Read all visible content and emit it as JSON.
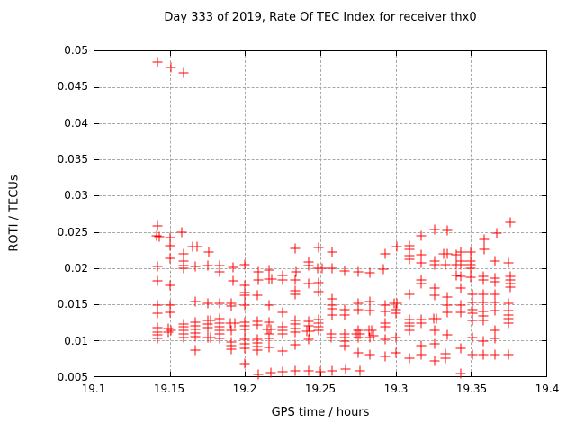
{
  "chart_data": {
    "type": "scatter",
    "title": "Day 333 of 2019, Rate Of TEC Index for receiver thx0",
    "xlabel": "GPS time / hours",
    "ylabel": "ROTI / TECUs",
    "xlim": [
      19.1,
      19.4
    ],
    "ylim": [
      0.005,
      0.05
    ],
    "grid": true,
    "legend": "none",
    "marker": {
      "shape": "plus",
      "color": "#ff0000"
    },
    "xticks": [
      {
        "v": 19.1,
        "label": "19.1"
      },
      {
        "v": 19.15,
        "label": "19.15"
      },
      {
        "v": 19.2,
        "label": "19.2"
      },
      {
        "v": 19.25,
        "label": "19.25"
      },
      {
        "v": 19.3,
        "label": "19.3"
      },
      {
        "v": 19.35,
        "label": "19.35"
      },
      {
        "v": 19.4,
        "label": "19.4"
      }
    ],
    "yticks": [
      {
        "v": 0.005,
        "label": "0.005"
      },
      {
        "v": 0.01,
        "label": "0.01"
      },
      {
        "v": 0.015,
        "label": "0.015"
      },
      {
        "v": 0.02,
        "label": "0.02"
      },
      {
        "v": 0.025,
        "label": "0.025"
      },
      {
        "v": 0.03,
        "label": "0.03"
      },
      {
        "v": 0.035,
        "label": "0.035"
      },
      {
        "v": 0.04,
        "label": "0.04"
      },
      {
        "v": 0.045,
        "label": "0.045"
      },
      {
        "v": 0.05,
        "label": "0.05"
      }
    ],
    "series": [
      {
        "name": "ROTI",
        "points": [
          [
            19.142,
            0.0485
          ],
          [
            19.151,
            0.0478
          ],
          [
            19.159,
            0.047
          ],
          [
            19.142,
            0.0258
          ],
          [
            19.141,
            0.0244
          ],
          [
            19.143,
            0.0243
          ],
          [
            19.158,
            0.0249
          ],
          [
            19.15,
            0.0242
          ],
          [
            19.15,
            0.0231
          ],
          [
            19.165,
            0.023
          ],
          [
            19.168,
            0.0229
          ],
          [
            19.176,
            0.0222
          ],
          [
            19.159,
            0.022
          ],
          [
            19.15,
            0.0213
          ],
          [
            19.159,
            0.021
          ],
          [
            19.159,
            0.0203
          ],
          [
            19.142,
            0.0202
          ],
          [
            19.167,
            0.0202
          ],
          [
            19.175,
            0.0203
          ],
          [
            19.183,
            0.0203
          ],
          [
            19.183,
            0.0195
          ],
          [
            19.159,
            0.0199
          ],
          [
            19.142,
            0.0182
          ],
          [
            19.15,
            0.0176
          ],
          [
            19.142,
            0.0149
          ],
          [
            19.15,
            0.0149
          ],
          [
            19.167,
            0.0153
          ],
          [
            19.175,
            0.0151
          ],
          [
            19.183,
            0.0151
          ],
          [
            19.142,
            0.0137
          ],
          [
            19.15,
            0.0138
          ],
          [
            19.149,
            0.0116
          ],
          [
            19.151,
            0.0114
          ],
          [
            19.149,
            0.0111
          ],
          [
            19.142,
            0.0117
          ],
          [
            19.142,
            0.0111
          ],
          [
            19.142,
            0.0107
          ],
          [
            19.142,
            0.0102
          ],
          [
            19.159,
            0.0122
          ],
          [
            19.159,
            0.0118
          ],
          [
            19.159,
            0.0113
          ],
          [
            19.159,
            0.0109
          ],
          [
            19.159,
            0.0104
          ],
          [
            19.167,
            0.0125
          ],
          [
            19.167,
            0.012
          ],
          [
            19.167,
            0.0115
          ],
          [
            19.167,
            0.011
          ],
          [
            19.167,
            0.0105
          ],
          [
            19.175,
            0.0127
          ],
          [
            19.177,
            0.0127
          ],
          [
            19.175,
            0.0122
          ],
          [
            19.175,
            0.0117
          ],
          [
            19.175,
            0.0104
          ],
          [
            19.177,
            0.0104
          ],
          [
            19.183,
            0.013
          ],
          [
            19.183,
            0.0123
          ],
          [
            19.183,
            0.0118
          ],
          [
            19.183,
            0.0113
          ],
          [
            19.183,
            0.0108
          ],
          [
            19.183,
            0.0102
          ],
          [
            19.167,
            0.0086
          ],
          [
            19.192,
            0.0201
          ],
          [
            19.192,
            0.0182
          ],
          [
            19.2,
            0.0204
          ],
          [
            19.2,
            0.0176
          ],
          [
            19.2,
            0.0166
          ],
          [
            19.209,
            0.0195
          ],
          [
            19.209,
            0.0184
          ],
          [
            19.216,
            0.0197
          ],
          [
            19.216,
            0.0185
          ],
          [
            19.218,
            0.0185
          ],
          [
            19.225,
            0.0189
          ],
          [
            19.225,
            0.0184
          ],
          [
            19.233,
            0.0227
          ],
          [
            19.233,
            0.0184
          ],
          [
            19.233,
            0.0169
          ],
          [
            19.234,
            0.0195
          ],
          [
            19.191,
            0.0151
          ],
          [
            19.191,
            0.0147
          ],
          [
            19.2,
            0.0162
          ],
          [
            19.208,
            0.0162
          ],
          [
            19.2,
            0.0149
          ],
          [
            19.216,
            0.0149
          ],
          [
            19.225,
            0.0138
          ],
          [
            19.233,
            0.0164
          ],
          [
            19.19,
            0.0123
          ],
          [
            19.193,
            0.0123
          ],
          [
            19.191,
            0.0113
          ],
          [
            19.191,
            0.0097
          ],
          [
            19.191,
            0.0092
          ],
          [
            19.191,
            0.0087
          ],
          [
            19.2,
            0.0125
          ],
          [
            19.2,
            0.012
          ],
          [
            19.2,
            0.0115
          ],
          [
            19.2,
            0.0101
          ],
          [
            19.2,
            0.0095
          ],
          [
            19.2,
            0.0089
          ],
          [
            19.2,
            0.0068
          ],
          [
            19.208,
            0.0126
          ],
          [
            19.208,
            0.0121
          ],
          [
            19.208,
            0.0101
          ],
          [
            19.208,
            0.0096
          ],
          [
            19.208,
            0.0091
          ],
          [
            19.208,
            0.0086
          ],
          [
            19.209,
            0.0052
          ],
          [
            19.216,
            0.0125
          ],
          [
            19.215,
            0.0115
          ],
          [
            19.217,
            0.0115
          ],
          [
            19.216,
            0.0109
          ],
          [
            19.216,
            0.0102
          ],
          [
            19.216,
            0.009
          ],
          [
            19.217,
            0.0055
          ],
          [
            19.225,
            0.0119
          ],
          [
            19.225,
            0.0113
          ],
          [
            19.225,
            0.0109
          ],
          [
            19.225,
            0.0085
          ],
          [
            19.225,
            0.0056
          ],
          [
            19.233,
            0.0127
          ],
          [
            19.233,
            0.0122
          ],
          [
            19.233,
            0.0116
          ],
          [
            19.233,
            0.0111
          ],
          [
            19.233,
            0.0094
          ],
          [
            19.233,
            0.0058
          ],
          [
            19.249,
            0.0228
          ],
          [
            19.258,
            0.0222
          ],
          [
            19.242,
            0.0208
          ],
          [
            19.242,
            0.0203
          ],
          [
            19.248,
            0.02
          ],
          [
            19.251,
            0.02
          ],
          [
            19.258,
            0.02
          ],
          [
            19.266,
            0.0196
          ],
          [
            19.275,
            0.0194
          ],
          [
            19.283,
            0.0193
          ],
          [
            19.242,
            0.0179
          ],
          [
            19.249,
            0.018
          ],
          [
            19.249,
            0.0167
          ],
          [
            19.258,
            0.0157
          ],
          [
            19.258,
            0.0149
          ],
          [
            19.258,
            0.0143
          ],
          [
            19.258,
            0.0135
          ],
          [
            19.266,
            0.0142
          ],
          [
            19.266,
            0.0135
          ],
          [
            19.275,
            0.0151
          ],
          [
            19.275,
            0.0142
          ],
          [
            19.283,
            0.0153
          ],
          [
            19.283,
            0.0141
          ],
          [
            19.242,
            0.0126
          ],
          [
            19.242,
            0.012
          ],
          [
            19.241,
            0.0112
          ],
          [
            19.243,
            0.0112
          ],
          [
            19.242,
            0.0101
          ],
          [
            19.249,
            0.0129
          ],
          [
            19.249,
            0.0124
          ],
          [
            19.249,
            0.0118
          ],
          [
            19.249,
            0.0113
          ],
          [
            19.257,
            0.0109
          ],
          [
            19.257,
            0.0104
          ],
          [
            19.266,
            0.0109
          ],
          [
            19.266,
            0.0104
          ],
          [
            19.266,
            0.0098
          ],
          [
            19.266,
            0.0093
          ],
          [
            19.275,
            0.0113
          ],
          [
            19.274,
            0.0109
          ],
          [
            19.276,
            0.0109
          ],
          [
            19.275,
            0.0104
          ],
          [
            19.275,
            0.0082
          ],
          [
            19.282,
            0.0113
          ],
          [
            19.284,
            0.0113
          ],
          [
            19.283,
            0.0104
          ],
          [
            19.283,
            0.008
          ],
          [
            19.242,
            0.0057
          ],
          [
            19.25,
            0.0056
          ],
          [
            19.258,
            0.0057
          ],
          [
            19.267,
            0.006
          ],
          [
            19.276,
            0.0057
          ],
          [
            19.326,
            0.0253
          ],
          [
            19.334,
            0.0252
          ],
          [
            19.317,
            0.0244
          ],
          [
            19.301,
            0.0229
          ],
          [
            19.309,
            0.0231
          ],
          [
            19.309,
            0.0226
          ],
          [
            19.293,
            0.022
          ],
          [
            19.309,
            0.0217
          ],
          [
            19.309,
            0.0212
          ],
          [
            19.317,
            0.0218
          ],
          [
            19.317,
            0.0207
          ],
          [
            19.326,
            0.0209
          ],
          [
            19.326,
            0.0204
          ],
          [
            19.332,
            0.022
          ],
          [
            19.334,
            0.022
          ],
          [
            19.333,
            0.0205
          ],
          [
            19.292,
            0.0198
          ],
          [
            19.317,
            0.0183
          ],
          [
            19.317,
            0.0178
          ],
          [
            19.326,
            0.0172
          ],
          [
            19.309,
            0.0164
          ],
          [
            19.34,
            0.0218
          ],
          [
            19.34,
            0.0204
          ],
          [
            19.34,
            0.0189
          ],
          [
            19.326,
            0.0162
          ],
          [
            19.334,
            0.016
          ],
          [
            19.293,
            0.0149
          ],
          [
            19.293,
            0.014
          ],
          [
            19.299,
            0.0151
          ],
          [
            19.301,
            0.0151
          ],
          [
            19.3,
            0.0142
          ],
          [
            19.3,
            0.0137
          ],
          [
            19.309,
            0.0128
          ],
          [
            19.309,
            0.0124
          ],
          [
            19.309,
            0.012
          ],
          [
            19.309,
            0.0113
          ],
          [
            19.293,
            0.0123
          ],
          [
            19.293,
            0.0118
          ],
          [
            19.285,
            0.0106
          ],
          [
            19.293,
            0.0101
          ],
          [
            19.3,
            0.0104
          ],
          [
            19.317,
            0.0129
          ],
          [
            19.317,
            0.0124
          ],
          [
            19.325,
            0.013
          ],
          [
            19.327,
            0.013
          ],
          [
            19.326,
            0.0113
          ],
          [
            19.326,
            0.0095
          ],
          [
            19.317,
            0.0093
          ],
          [
            19.317,
            0.008
          ],
          [
            19.309,
            0.0075
          ],
          [
            19.293,
            0.0077
          ],
          [
            19.3,
            0.0082
          ],
          [
            19.334,
            0.0138
          ],
          [
            19.334,
            0.0149
          ],
          [
            19.334,
            0.0107
          ],
          [
            19.333,
            0.0081
          ],
          [
            19.333,
            0.0075
          ],
          [
            19.326,
            0.0071
          ],
          [
            19.376,
            0.0263
          ],
          [
            19.367,
            0.0248
          ],
          [
            19.359,
            0.024
          ],
          [
            19.359,
            0.0226
          ],
          [
            19.343,
            0.0222
          ],
          [
            19.343,
            0.0209
          ],
          [
            19.343,
            0.0205
          ],
          [
            19.35,
            0.0222
          ],
          [
            19.35,
            0.0209
          ],
          [
            19.35,
            0.0205
          ],
          [
            19.35,
            0.0199
          ],
          [
            19.366,
            0.0209
          ],
          [
            19.375,
            0.0207
          ],
          [
            19.343,
            0.0188
          ],
          [
            19.35,
            0.0187
          ],
          [
            19.358,
            0.0188
          ],
          [
            19.358,
            0.0183
          ],
          [
            19.366,
            0.0186
          ],
          [
            19.366,
            0.0181
          ],
          [
            19.376,
            0.0188
          ],
          [
            19.376,
            0.0183
          ],
          [
            19.376,
            0.0178
          ],
          [
            19.376,
            0.0173
          ],
          [
            19.343,
            0.0172
          ],
          [
            19.358,
            0.0164
          ],
          [
            19.351,
            0.0164
          ],
          [
            19.366,
            0.0163
          ],
          [
            19.343,
            0.0149
          ],
          [
            19.343,
            0.0138
          ],
          [
            19.351,
            0.0152
          ],
          [
            19.351,
            0.0142
          ],
          [
            19.351,
            0.0137
          ],
          [
            19.351,
            0.0127
          ],
          [
            19.358,
            0.0152
          ],
          [
            19.358,
            0.014
          ],
          [
            19.358,
            0.0134
          ],
          [
            19.358,
            0.0127
          ],
          [
            19.366,
            0.0152
          ],
          [
            19.366,
            0.0141
          ],
          [
            19.375,
            0.0151
          ],
          [
            19.375,
            0.0141
          ],
          [
            19.375,
            0.0135
          ],
          [
            19.375,
            0.013
          ],
          [
            19.375,
            0.0124
          ],
          [
            19.366,
            0.0113
          ],
          [
            19.351,
            0.0104
          ],
          [
            19.358,
            0.0099
          ],
          [
            19.366,
            0.0102
          ],
          [
            19.343,
            0.0089
          ],
          [
            19.351,
            0.008
          ],
          [
            19.358,
            0.008
          ],
          [
            19.366,
            0.008
          ],
          [
            19.375,
            0.008
          ],
          [
            19.343,
            0.0054
          ]
        ]
      }
    ]
  }
}
